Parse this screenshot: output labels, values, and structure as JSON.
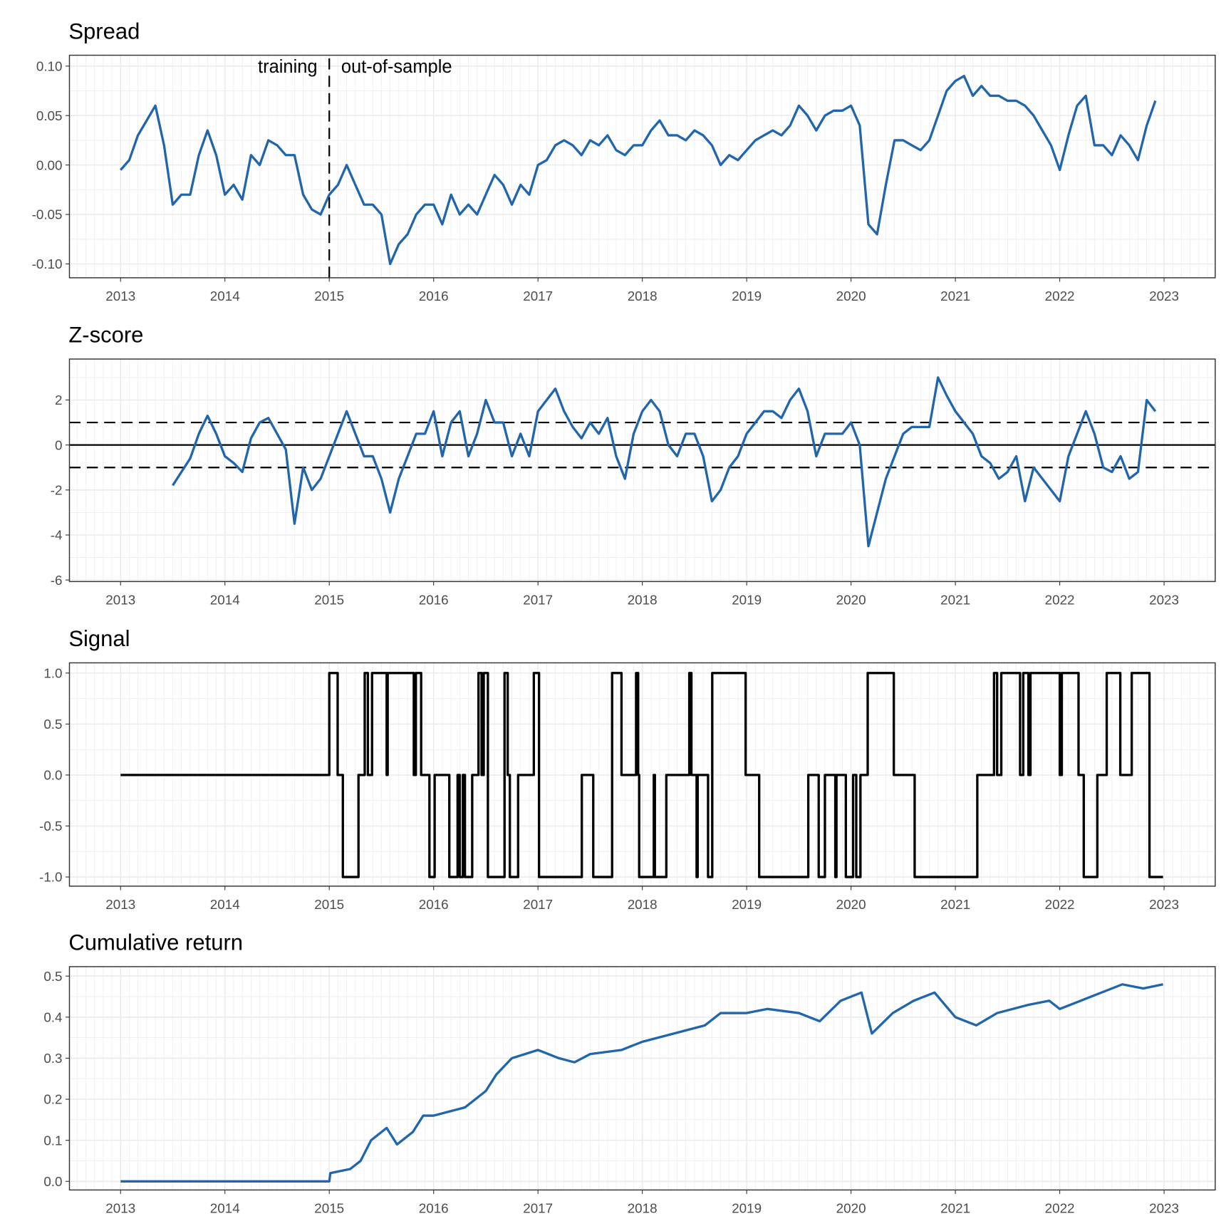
{
  "colors": {
    "series": "#2166ac",
    "signal": "#000000",
    "grid": "#ebebeb",
    "border": "#333333"
  },
  "chart_data": [
    {
      "type": "line",
      "title": "Spread",
      "xlim": [
        2012.51,
        2023.49
      ],
      "ylim": [
        -0.114,
        0.111
      ],
      "x_ticks": [
        2013,
        2014,
        2015,
        2016,
        2017,
        2018,
        2019,
        2020,
        2021,
        2022,
        2023
      ],
      "x_tick_labels": [
        "2013",
        "2014",
        "2015",
        "2016",
        "2017",
        "2018",
        "2019",
        "2020",
        "2021",
        "2022",
        "2023"
      ],
      "y_ticks": [
        0.1,
        0.05,
        0.0,
        -0.05,
        -0.1
      ],
      "y_tick_labels": [
        "0.10",
        "0.05",
        "0.00",
        "-0.05",
        "-0.10"
      ],
      "grid": true,
      "vline": {
        "x": 2015.0,
        "style": "dashed"
      },
      "annotations": [
        {
          "text": "training",
          "x": 2015.0,
          "align": "right"
        },
        {
          "text": "out-of-sample",
          "x": 2015.0,
          "align": "left"
        }
      ],
      "x_start": 2013.0,
      "x_step_months": 1,
      "values": [
        -0.005,
        0.005,
        0.03,
        0.045,
        0.06,
        0.02,
        -0.04,
        -0.03,
        -0.03,
        0.01,
        0.035,
        0.01,
        -0.03,
        -0.02,
        -0.035,
        0.01,
        0.0,
        0.025,
        0.02,
        0.01,
        0.01,
        -0.03,
        -0.045,
        -0.05,
        -0.03,
        -0.02,
        0.0,
        -0.02,
        -0.04,
        -0.04,
        -0.05,
        -0.1,
        -0.08,
        -0.07,
        -0.05,
        -0.04,
        -0.04,
        -0.06,
        -0.03,
        -0.05,
        -0.04,
        -0.05,
        -0.03,
        -0.01,
        -0.02,
        -0.04,
        -0.02,
        -0.03,
        0.0,
        0.005,
        0.02,
        0.025,
        0.02,
        0.01,
        0.025,
        0.02,
        0.03,
        0.015,
        0.01,
        0.02,
        0.02,
        0.035,
        0.045,
        0.03,
        0.03,
        0.025,
        0.035,
        0.03,
        0.02,
        0.0,
        0.01,
        0.005,
        0.015,
        0.025,
        0.03,
        0.035,
        0.03,
        0.04,
        0.06,
        0.05,
        0.035,
        0.05,
        0.055,
        0.055,
        0.06,
        0.04,
        -0.06,
        -0.07,
        -0.02,
        0.025,
        0.025,
        0.02,
        0.015,
        0.025,
        0.05,
        0.075,
        0.085,
        0.09,
        0.07,
        0.08,
        0.07,
        0.07,
        0.065,
        0.065,
        0.06,
        0.05,
        0.035,
        0.02,
        -0.005,
        0.03,
        0.06,
        0.07,
        0.02,
        0.02,
        0.01,
        0.03,
        0.02,
        0.005,
        0.04,
        0.065
      ]
    },
    {
      "type": "line",
      "title": "Z-score",
      "xlim": [
        2012.51,
        2023.49
      ],
      "ylim": [
        -6.07,
        3.82
      ],
      "x_ticks": [
        2013,
        2014,
        2015,
        2016,
        2017,
        2018,
        2019,
        2020,
        2021,
        2022,
        2023
      ],
      "x_tick_labels": [
        "2013",
        "2014",
        "2015",
        "2016",
        "2017",
        "2018",
        "2019",
        "2020",
        "2021",
        "2022",
        "2023"
      ],
      "y_ticks": [
        2,
        0,
        -2,
        -4,
        -6
      ],
      "y_tick_labels": [
        "2",
        "0",
        "-2",
        "-4",
        "-6"
      ],
      "grid": true,
      "hlines": [
        {
          "y": 1,
          "style": "dashed"
        },
        {
          "y": 0,
          "style": "solid"
        },
        {
          "y": -1,
          "style": "dashed"
        }
      ],
      "x_start": 2013.5,
      "x_step_months": 1,
      "values": [
        -1.8,
        -1.2,
        -0.6,
        0.5,
        1.3,
        0.5,
        -0.5,
        -0.8,
        -1.2,
        0.3,
        1.0,
        1.2,
        0.5,
        -0.2,
        -3.5,
        -1.0,
        -2.0,
        -1.5,
        -0.5,
        0.5,
        1.5,
        0.5,
        -0.5,
        -0.5,
        -1.5,
        -3.0,
        -1.5,
        -0.5,
        0.5,
        0.5,
        1.5,
        -0.5,
        1.0,
        1.5,
        -0.5,
        0.5,
        2.0,
        1.0,
        1.0,
        -0.5,
        0.5,
        -0.5,
        1.5,
        2.0,
        2.5,
        1.5,
        0.8,
        0.3,
        1.0,
        0.5,
        1.2,
        -0.5,
        -1.5,
        0.5,
        1.5,
        2.0,
        1.5,
        0.0,
        -0.5,
        0.5,
        0.5,
        -0.5,
        -2.5,
        -2.0,
        -1.0,
        -0.5,
        0.5,
        1.0,
        1.5,
        1.5,
        1.2,
        2.0,
        2.5,
        1.5,
        -0.5,
        0.5,
        0.5,
        0.5,
        1.0,
        0.0,
        -4.5,
        -3.0,
        -1.5,
        -0.5,
        0.5,
        0.8,
        0.8,
        0.8,
        3.0,
        2.2,
        1.5,
        1.0,
        0.5,
        -0.5,
        -0.8,
        -1.5,
        -1.2,
        -0.5,
        -2.5,
        -1.0,
        -1.5,
        -2.0,
        -2.5,
        -0.5,
        0.5,
        1.5,
        0.5,
        -1.0,
        -1.2,
        -0.5,
        -1.5,
        -1.2,
        2.0,
        1.5
      ]
    },
    {
      "type": "step",
      "title": "Signal",
      "xlim": [
        2012.51,
        2023.49
      ],
      "ylim": [
        -1.09,
        1.1
      ],
      "x_ticks": [
        2013,
        2014,
        2015,
        2016,
        2017,
        2018,
        2019,
        2020,
        2021,
        2022,
        2023
      ],
      "x_tick_labels": [
        "2013",
        "2014",
        "2015",
        "2016",
        "2017",
        "2018",
        "2019",
        "2020",
        "2021",
        "2022",
        "2023"
      ],
      "y_ticks": [
        1.0,
        0.5,
        0.0,
        -0.5,
        -1.0
      ],
      "y_tick_labels": [
        "1.0",
        "0.5",
        "0.0",
        "-0.5",
        "-1.0"
      ],
      "grid": true,
      "x_end": 2022.99,
      "points": [
        [
          2013.0,
          0
        ],
        [
          2015.0,
          1
        ],
        [
          2015.08,
          0
        ],
        [
          2015.13,
          -1
        ],
        [
          2015.28,
          0
        ],
        [
          2015.34,
          1
        ],
        [
          2015.37,
          0
        ],
        [
          2015.41,
          1
        ],
        [
          2015.55,
          0
        ],
        [
          2015.56,
          1
        ],
        [
          2015.81,
          0
        ],
        [
          2015.83,
          1
        ],
        [
          2015.88,
          0
        ],
        [
          2015.96,
          -1
        ],
        [
          2016.01,
          0
        ],
        [
          2016.15,
          -1
        ],
        [
          2016.23,
          0
        ],
        [
          2016.25,
          -1
        ],
        [
          2016.28,
          0
        ],
        [
          2016.3,
          -1
        ],
        [
          2016.37,
          0
        ],
        [
          2016.43,
          1
        ],
        [
          2016.46,
          0
        ],
        [
          2016.48,
          1
        ],
        [
          2016.52,
          -1
        ],
        [
          2016.68,
          1
        ],
        [
          2016.71,
          0
        ],
        [
          2016.73,
          -1
        ],
        [
          2016.81,
          0
        ],
        [
          2016.96,
          1
        ],
        [
          2017.01,
          -1
        ],
        [
          2017.42,
          0
        ],
        [
          2017.53,
          -1
        ],
        [
          2017.71,
          1
        ],
        [
          2017.8,
          0
        ],
        [
          2017.94,
          1
        ],
        [
          2017.96,
          0
        ],
        [
          2017.97,
          -1
        ],
        [
          2018.11,
          0
        ],
        [
          2018.12,
          -1
        ],
        [
          2018.23,
          0
        ],
        [
          2018.45,
          1
        ],
        [
          2018.47,
          0
        ],
        [
          2018.52,
          -1
        ],
        [
          2018.53,
          0
        ],
        [
          2018.63,
          -1
        ],
        [
          2018.67,
          1
        ],
        [
          2018.99,
          0
        ],
        [
          2019.12,
          -1
        ],
        [
          2019.59,
          0
        ],
        [
          2019.69,
          -1
        ],
        [
          2019.75,
          0
        ],
        [
          2019.85,
          -1
        ],
        [
          2019.86,
          0
        ],
        [
          2019.95,
          -1
        ],
        [
          2020.02,
          0
        ],
        [
          2020.05,
          -1
        ],
        [
          2020.09,
          0
        ],
        [
          2020.16,
          1
        ],
        [
          2020.41,
          0
        ],
        [
          2020.61,
          -1
        ],
        [
          2021.21,
          0
        ],
        [
          2021.37,
          1
        ],
        [
          2021.4,
          0
        ],
        [
          2021.44,
          1
        ],
        [
          2021.62,
          0
        ],
        [
          2021.65,
          1
        ],
        [
          2021.7,
          0
        ],
        [
          2021.72,
          1
        ],
        [
          2022.0,
          0
        ],
        [
          2022.02,
          1
        ],
        [
          2022.18,
          0
        ],
        [
          2022.23,
          -1
        ],
        [
          2022.36,
          0
        ],
        [
          2022.45,
          1
        ],
        [
          2022.58,
          0
        ],
        [
          2022.69,
          1
        ],
        [
          2022.86,
          -1
        ]
      ]
    },
    {
      "type": "line",
      "title": "Cumulative return",
      "xlim": [
        2012.51,
        2023.49
      ],
      "ylim": [
        -0.021,
        0.523
      ],
      "x_ticks": [
        2013,
        2014,
        2015,
        2016,
        2017,
        2018,
        2019,
        2020,
        2021,
        2022,
        2023
      ],
      "x_tick_labels": [
        "2013",
        "2014",
        "2015",
        "2016",
        "2017",
        "2018",
        "2019",
        "2020",
        "2021",
        "2022",
        "2023"
      ],
      "y_ticks": [
        0.5,
        0.4,
        0.3,
        0.2,
        0.1,
        0.0
      ],
      "y_tick_labels": [
        "0.5",
        "0.4",
        "0.3",
        "0.2",
        "0.1",
        "0.0"
      ],
      "grid": true,
      "points": [
        [
          2013.0,
          0
        ],
        [
          2015.0,
          0
        ],
        [
          2015.01,
          0.02
        ],
        [
          2015.2,
          0.03
        ],
        [
          2015.3,
          0.05
        ],
        [
          2015.4,
          0.1
        ],
        [
          2015.55,
          0.13
        ],
        [
          2015.65,
          0.09
        ],
        [
          2015.8,
          0.12
        ],
        [
          2015.9,
          0.16
        ],
        [
          2016.0,
          0.16
        ],
        [
          2016.3,
          0.18
        ],
        [
          2016.4,
          0.2
        ],
        [
          2016.5,
          0.22
        ],
        [
          2016.6,
          0.26
        ],
        [
          2016.75,
          0.3
        ],
        [
          2017.0,
          0.32
        ],
        [
          2017.2,
          0.3
        ],
        [
          2017.35,
          0.29
        ],
        [
          2017.5,
          0.31
        ],
        [
          2017.8,
          0.32
        ],
        [
          2018.0,
          0.34
        ],
        [
          2018.3,
          0.36
        ],
        [
          2018.6,
          0.38
        ],
        [
          2018.75,
          0.41
        ],
        [
          2019.0,
          0.41
        ],
        [
          2019.2,
          0.42
        ],
        [
          2019.5,
          0.41
        ],
        [
          2019.7,
          0.39
        ],
        [
          2019.9,
          0.44
        ],
        [
          2020.1,
          0.46
        ],
        [
          2020.2,
          0.36
        ],
        [
          2020.4,
          0.41
        ],
        [
          2020.6,
          0.44
        ],
        [
          2020.8,
          0.46
        ],
        [
          2021.0,
          0.4
        ],
        [
          2021.2,
          0.38
        ],
        [
          2021.4,
          0.41
        ],
        [
          2021.7,
          0.43
        ],
        [
          2021.9,
          0.44
        ],
        [
          2022.0,
          0.42
        ],
        [
          2022.2,
          0.44
        ],
        [
          2022.4,
          0.46
        ],
        [
          2022.6,
          0.48
        ],
        [
          2022.8,
          0.47
        ],
        [
          2022.99,
          0.48
        ]
      ]
    }
  ]
}
